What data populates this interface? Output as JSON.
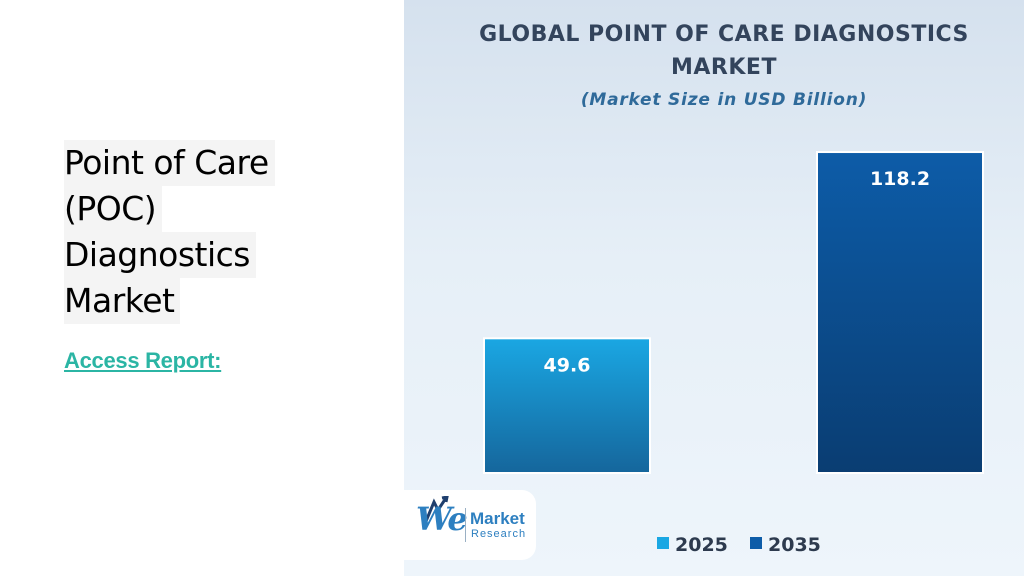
{
  "headline": {
    "lines": [
      "Point of Care",
      "(POC)",
      "Diagnostics",
      "Market"
    ]
  },
  "access_link": "Access Report:",
  "logo": {
    "mark": "We",
    "word1": "Market",
    "word2": "Research"
  },
  "chart_data": {
    "type": "bar",
    "title": "GLOBAL POINT OF CARE DIAGNOSTICS MARKET",
    "subtitle": "(Market Size in USD Billion)",
    "categories": [
      "2025",
      "2035"
    ],
    "values": [
      49.6,
      118.2
    ],
    "ylim": [
      0,
      130
    ],
    "grid": false,
    "legend_position": "bottom",
    "colors": [
      "#1aa7e3",
      "#0d5ca8"
    ],
    "colors_dark": [
      "#15669c",
      "#0a3d72"
    ]
  }
}
